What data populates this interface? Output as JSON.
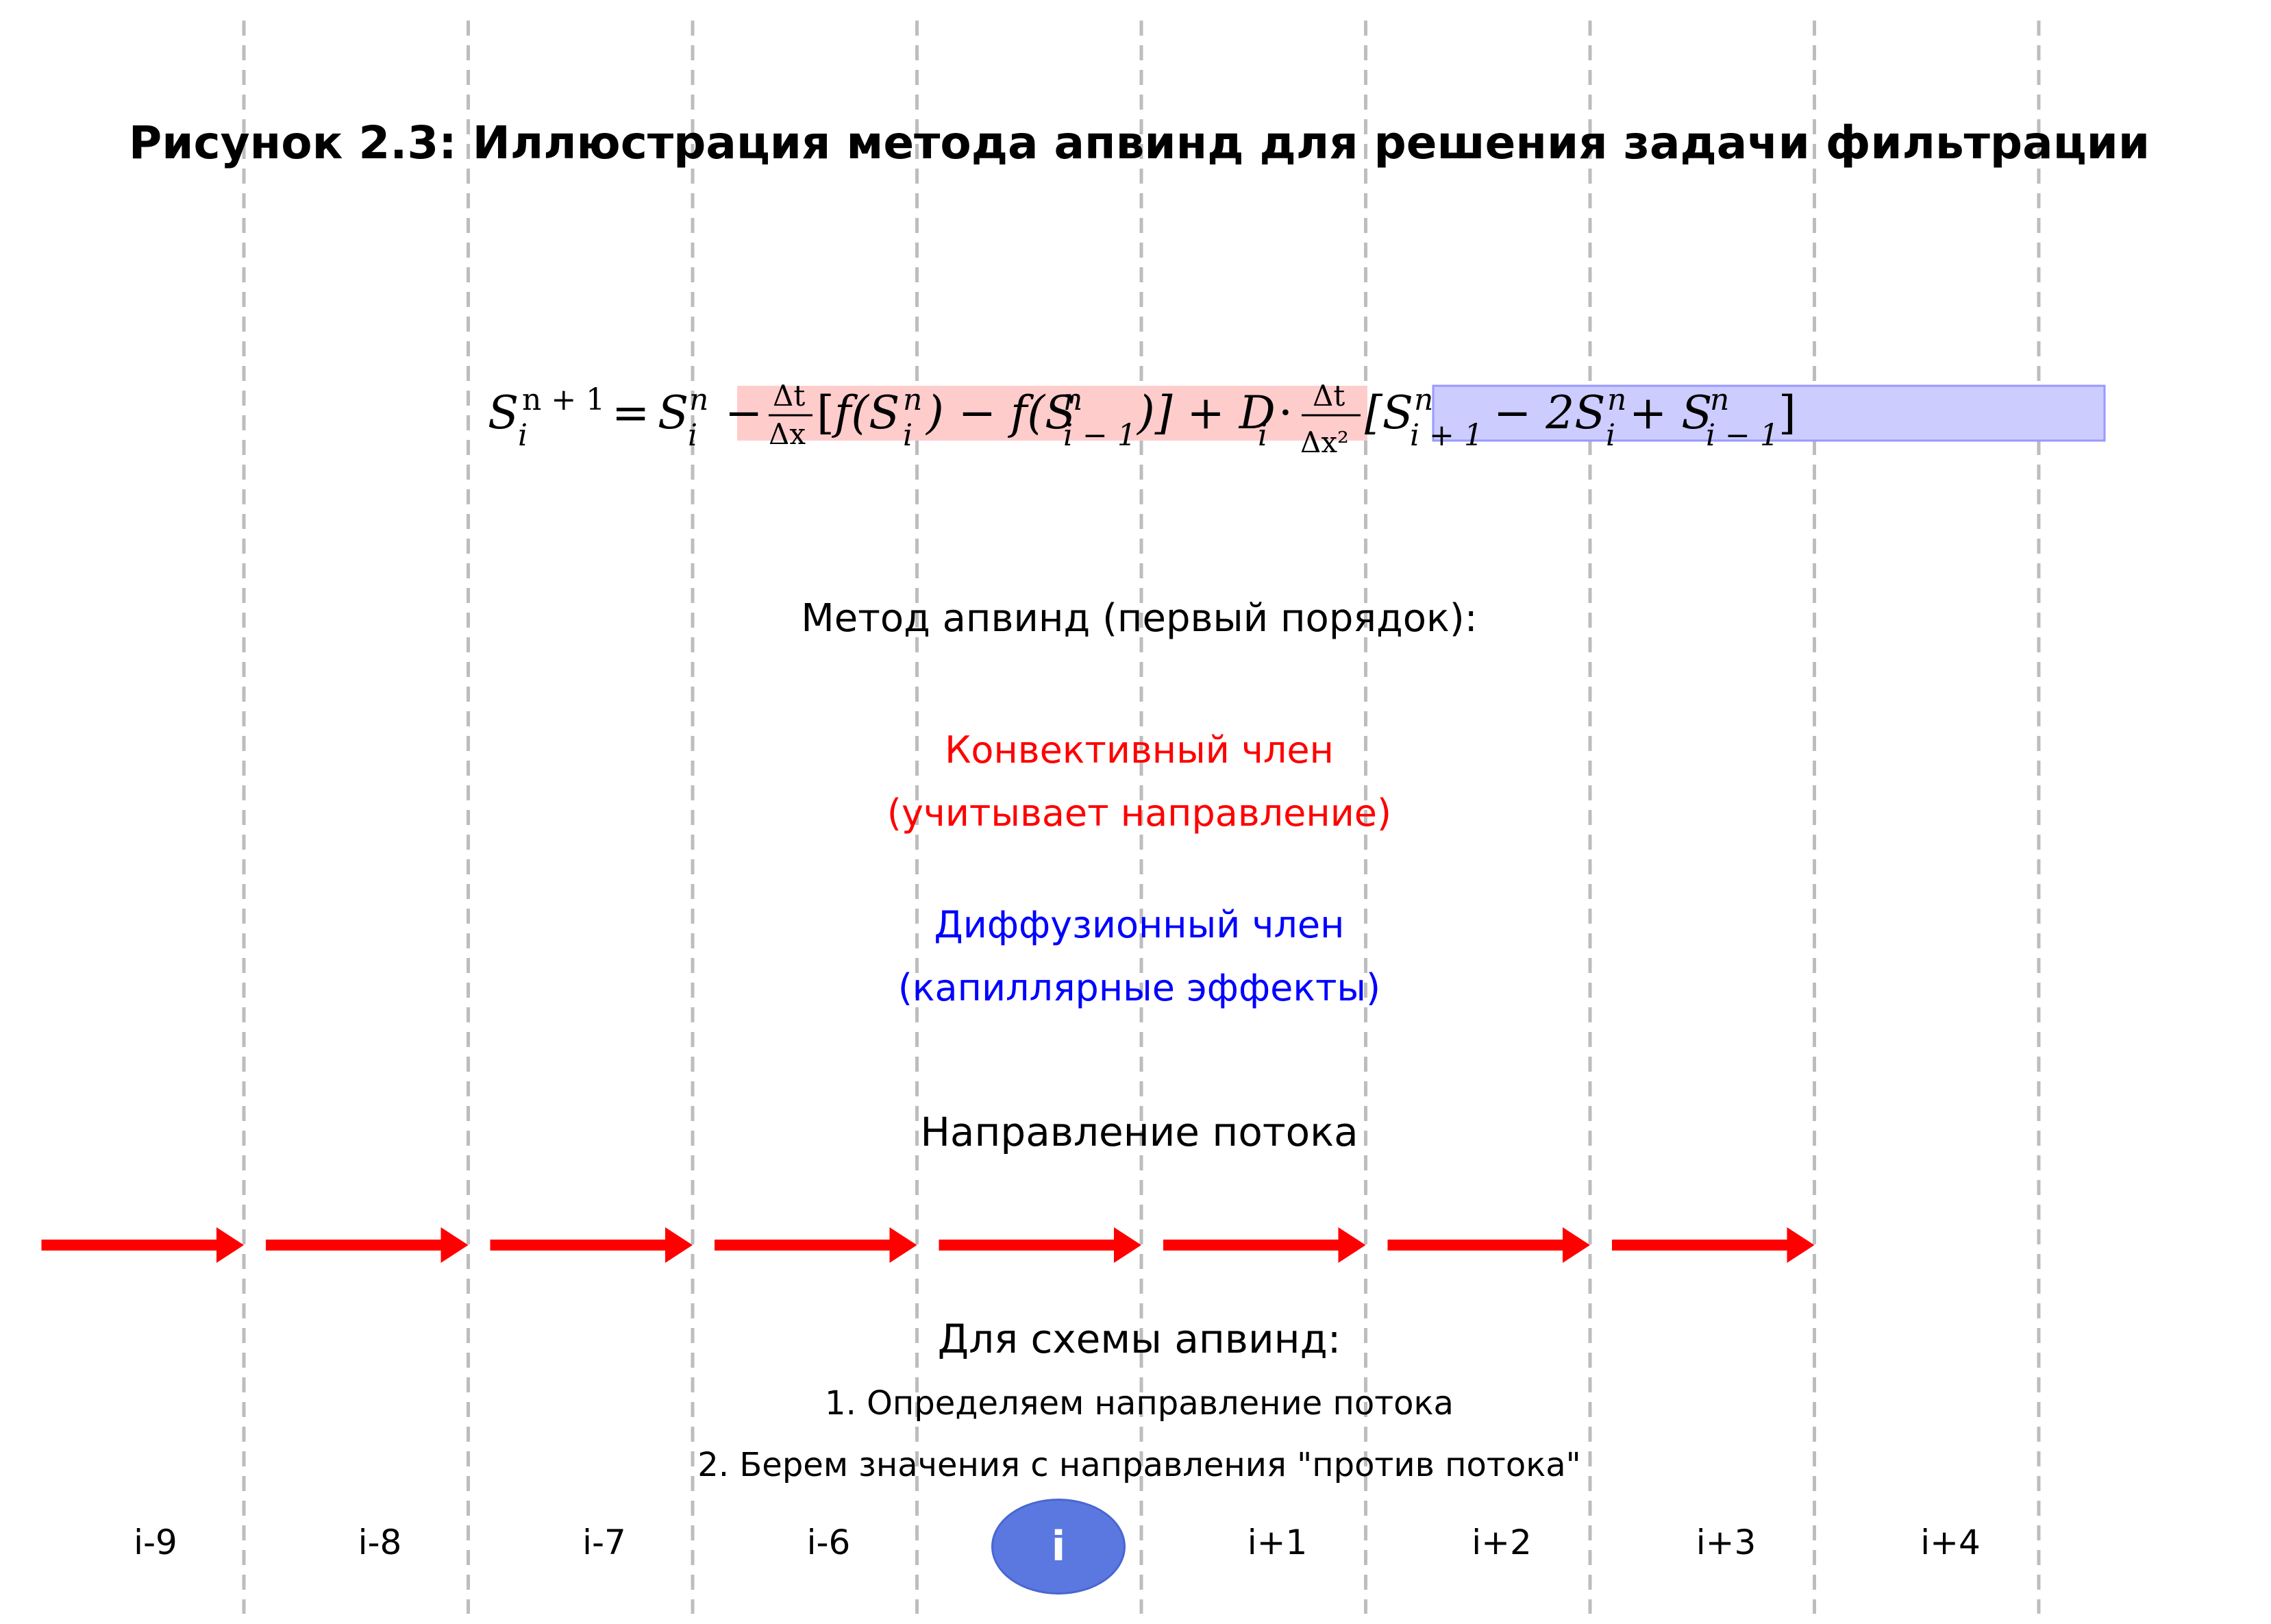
{
  "title": "Рисунок 2.3: Иллюстрация метода апвинд для решения задачи фильтрации",
  "formula": {
    "lhs": "S",
    "lhs_sup": "n + 1",
    "lhs_sub": "i",
    "eq": "=",
    "s1": "S",
    "s1_sup": "n",
    "s1_sub": "i",
    "minus": "−",
    "frac1_num": "Δt",
    "frac1_den": "Δx",
    "conv_open": "[",
    "f1": "f(S",
    "f1_sup": "n",
    "f1_sub": "i",
    "f1_close": ") − f(S",
    "f2_sup": "n",
    "f2_sub": "i − 1",
    "f2_close": ")] + D",
    "d_sub": "i",
    "dot": "·",
    "frac2_num": "Δt",
    "frac2_den": "Δx²",
    "diff_open": "[S",
    "d1_sup": "n",
    "d1_sub": "i + 1",
    "d2": "− 2S",
    "d2_sup": "n",
    "d2_sub": "i",
    "d3": "+ S",
    "d3_sup": "n",
    "d3_sub": "i − 1",
    "diff_close": "]"
  },
  "method_heading": "Метод апвинд (первый порядок):",
  "convective": {
    "line1": "Конвективный член",
    "line2": "(учитывает направление)",
    "color": "#ff0000",
    "highlight": "#ffcccc"
  },
  "diffusive": {
    "line1": "Диффузионный член",
    "line2": "(капиллярные эффекты)",
    "color": "#0000ff",
    "highlight": "#ccccff"
  },
  "flow_title": "Направление потока",
  "flow_arrows": {
    "count": 8,
    "color": "#ff0000"
  },
  "upwind": {
    "heading": "Для схемы апвинд:",
    "step1": "1. Определяем направление потока",
    "step2": "2. Берем значения с направления \"против потока\""
  },
  "cells": [
    "i-9",
    "i-8",
    "i-7",
    "i-6",
    "i",
    "i+1",
    "i+2",
    "i+3",
    "i+4"
  ],
  "center_node": {
    "label": "i",
    "color": "#5b78e0"
  },
  "grid_line_color": "#bdbdbd"
}
